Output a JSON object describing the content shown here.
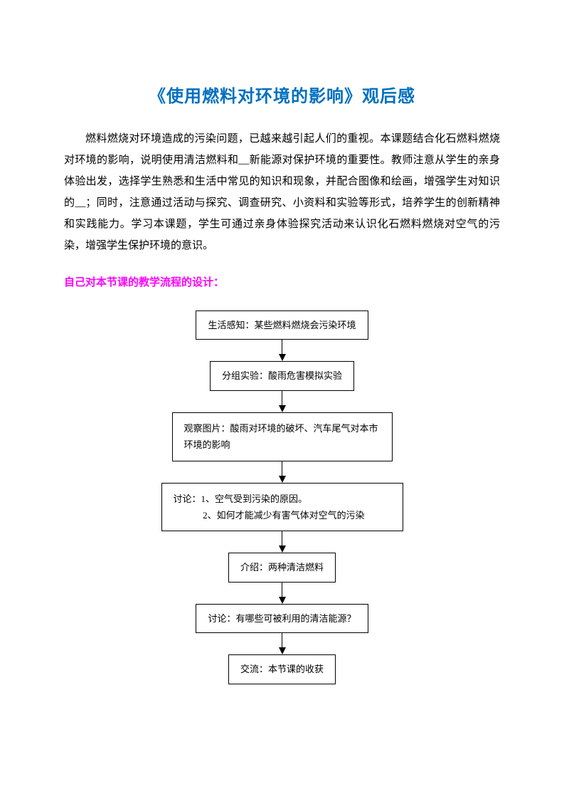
{
  "title": "《使用燃料对环境的影响》观后感",
  "paragraph": "燃料燃烧对环境造成的污染问题，已越来越引起人们的重视。本课题结合化石燃料燃烧对环境的影响，说明使用清洁燃料和__新能源对保护环境的重要性。教师注意从学生的亲身体验出发，选择学生熟悉和生活中常见的知识和现象，并配合图像和绘画，增强学生对知识的__；同时，注意通过活动与探究、调查研究、小资料和实验等形式，培养学生的创新精神和实践能力。学习本课题，学生可通过亲身体验探究活动来认识化石燃料燃烧对空气的污染，增强学生保护环境的意识。",
  "subtitle": "自己对本节课的教学流程的设计：",
  "flowchart": {
    "nodes": [
      {
        "text": "生活感知：某些燃料燃烧会污染环境",
        "type": "single",
        "width": "auto"
      },
      {
        "text": "分组实验：酸雨危害模拟实验",
        "type": "single",
        "width": "auto"
      },
      {
        "text": "观察图片：酸雨对环境的破坏、汽车尾气对本市环境的影响",
        "type": "multi",
        "width": "wide"
      },
      {
        "line1": "讨论：1、空气受到污染的原因。",
        "line2": "2、如何才能减少有害气体对空气的污染",
        "type": "discuss",
        "width": "wider"
      },
      {
        "text": "介绍：两种清洁燃料",
        "type": "single",
        "width": "auto"
      },
      {
        "text": "讨论：有哪些可被利用的清洁能源？",
        "type": "single",
        "width": "auto"
      },
      {
        "text": "交流：本节课的收获",
        "type": "single",
        "width": "auto"
      }
    ],
    "colors": {
      "border": "#000000",
      "text": "#000000",
      "background": "#ffffff"
    }
  },
  "colors": {
    "title": "#0070c0",
    "subtitle": "#ff00ff",
    "text": "#000000",
    "background": "#ffffff"
  }
}
